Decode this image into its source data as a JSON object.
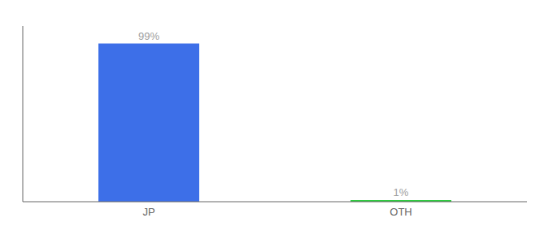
{
  "chart_data": {
    "type": "bar",
    "categories": [
      "JP",
      "OTH"
    ],
    "values": [
      99,
      1
    ],
    "value_labels": [
      "99%",
      "1%"
    ],
    "colors": [
      "#3d6fe8",
      "#2ecc40"
    ],
    "ylim": [
      0,
      110
    ],
    "data_labels": true,
    "tick_labels": "x",
    "grid": false
  }
}
